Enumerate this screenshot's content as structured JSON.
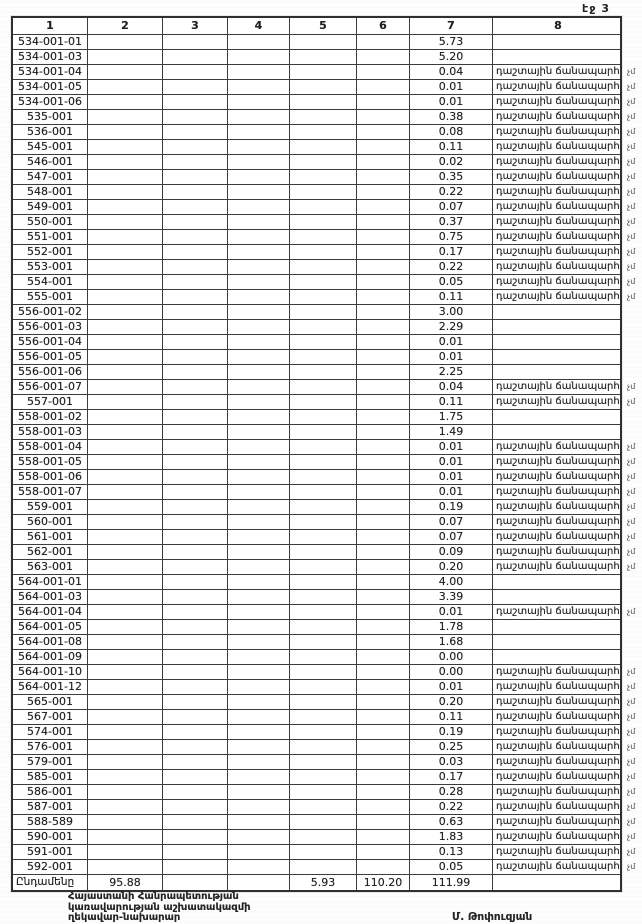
{
  "page": {
    "page_label": "էջ 3"
  },
  "table": {
    "headers": [
      "1",
      "2",
      "3",
      "4",
      "5",
      "6",
      "7",
      "8"
    ],
    "rows": [
      {
        "code": "534-001-01",
        "value": "5.73",
        "note": "",
        "margin": ""
      },
      {
        "code": "534-001-03",
        "value": "5.20",
        "note": "",
        "margin": ""
      },
      {
        "code": "534-001-04",
        "value": "0.04",
        "note": "դաշտային ճանապարհ",
        "margin": "չմ"
      },
      {
        "code": "534-001-05",
        "value": "0.01",
        "note": "դաշտային ճանապարհ",
        "margin": "չմ"
      },
      {
        "code": "534-001-06",
        "value": "0.01",
        "note": "դաշտային ճանապարհ",
        "margin": "չմ"
      },
      {
        "code": "535-001",
        "value": "0.38",
        "note": "դաշտային ճանապարհ",
        "margin": "չմ"
      },
      {
        "code": "536-001",
        "value": "0.08",
        "note": "դաշտային ճանապարհ",
        "margin": "չմ"
      },
      {
        "code": "545-001",
        "value": "0.11",
        "note": "դաշտային ճանապարհ",
        "margin": "չմ"
      },
      {
        "code": "546-001",
        "value": "0.02",
        "note": "դաշտային ճանապարհ",
        "margin": "չմ"
      },
      {
        "code": "547-001",
        "value": "0.35",
        "note": "դաշտային ճանապարհ",
        "margin": "չմ"
      },
      {
        "code": "548-001",
        "value": "0.22",
        "note": "դաշտային ճանապարհ",
        "margin": "չմ"
      },
      {
        "code": "549-001",
        "value": "0.07",
        "note": "դաշտային ճանապարհ",
        "margin": "չմ"
      },
      {
        "code": "550-001",
        "value": "0.37",
        "note": "դաշտային ճանապարհ",
        "margin": "չմ"
      },
      {
        "code": "551-001",
        "value": "0.75",
        "note": "դաշտային ճանապարհ",
        "margin": "չմ"
      },
      {
        "code": "552-001",
        "value": "0.17",
        "note": "դաշտային ճանապարհ",
        "margin": "չմ"
      },
      {
        "code": "553-001",
        "value": "0.22",
        "note": "դաշտային ճանապարհ",
        "margin": "չմ"
      },
      {
        "code": "554-001",
        "value": "0.05",
        "note": "դաշտային ճանապարհ",
        "margin": "չմ"
      },
      {
        "code": "555-001",
        "value": "0.11",
        "note": "դաշտային ճանապարհ",
        "margin": "չմ"
      },
      {
        "code": "556-001-02",
        "value": "3.00",
        "note": "",
        "margin": ""
      },
      {
        "code": "556-001-03",
        "value": "2.29",
        "note": "",
        "margin": ""
      },
      {
        "code": "556-001-04",
        "value": "0.01",
        "note": "",
        "margin": ""
      },
      {
        "code": "556-001-05",
        "value": "0.01",
        "note": "",
        "margin": ""
      },
      {
        "code": "556-001-06",
        "value": "2.25",
        "note": "",
        "margin": ""
      },
      {
        "code": "556-001-07",
        "value": "0.04",
        "note": "դաշտային ճանապարհ",
        "margin": "չմ"
      },
      {
        "code": "557-001",
        "value": "0.11",
        "note": "դաշտային ճանապարհ",
        "margin": "չմ"
      },
      {
        "code": "558-001-02",
        "value": "1.75",
        "note": "",
        "margin": ""
      },
      {
        "code": "558-001-03",
        "value": "1.49",
        "note": "",
        "margin": ""
      },
      {
        "code": "558-001-04",
        "value": "0.01",
        "note": "դաշտային ճանապարհ",
        "margin": "չմ"
      },
      {
        "code": "558-001-05",
        "value": "0.01",
        "note": "դաշտային ճանապարհ",
        "margin": "չմ"
      },
      {
        "code": "558-001-06",
        "value": "0.01",
        "note": "դաշտային ճանապարհ",
        "margin": "չմ"
      },
      {
        "code": "558-001-07",
        "value": "0.01",
        "note": "դաշտային ճանապարհ",
        "margin": "չմ"
      },
      {
        "code": "559-001",
        "value": "0.19",
        "note": "դաշտային ճանապարհ",
        "margin": "չմ"
      },
      {
        "code": "560-001",
        "value": "0.07",
        "note": "դաշտային ճանապարհ",
        "margin": "չմ"
      },
      {
        "code": "561-001",
        "value": "0.07",
        "note": "դաշտային ճանապարհ",
        "margin": "չմ"
      },
      {
        "code": "562-001",
        "value": "0.09",
        "note": "դաշտային ճանապարհ",
        "margin": "չմ"
      },
      {
        "code": "563-001",
        "value": "0.20",
        "note": "դաշտային ճանապարհ",
        "margin": "չմ"
      },
      {
        "code": "564-001-01",
        "value": "4.00",
        "note": "",
        "margin": ""
      },
      {
        "code": "564-001-03",
        "value": "3.39",
        "note": "",
        "margin": ""
      },
      {
        "code": "564-001-04",
        "value": "0.01",
        "note": "դաշտային ճանապարհ",
        "margin": "չմ"
      },
      {
        "code": "564-001-05",
        "value": "1.78",
        "note": "",
        "margin": ""
      },
      {
        "code": "564-001-08",
        "value": "1.68",
        "note": "",
        "margin": ""
      },
      {
        "code": "564-001-09",
        "value": "0.00",
        "note": "",
        "margin": ""
      },
      {
        "code": "564-001-10",
        "value": "0.00",
        "note": "դաշտային ճանապարհ",
        "margin": "չմ"
      },
      {
        "code": "564-001-12",
        "value": "0.01",
        "note": "դաշտային ճանապարհ",
        "margin": "չմ"
      },
      {
        "code": "565-001",
        "value": "0.20",
        "note": "դաշտային ճանապարհ",
        "margin": "չմ"
      },
      {
        "code": "567-001",
        "value": "0.11",
        "note": "դաշտային ճանապարհ",
        "margin": "չմ"
      },
      {
        "code": "574-001",
        "value": "0.19",
        "note": "դաշտային ճանապարհ",
        "margin": "չմ"
      },
      {
        "code": "576-001",
        "value": "0.25",
        "note": "դաշտային ճանապարհ",
        "margin": "չմ"
      },
      {
        "code": "579-001",
        "value": "0.03",
        "note": "դաշտային ճանապարհ",
        "margin": "չմ"
      },
      {
        "code": "585-001",
        "value": "0.17",
        "note": "դաշտային ճանապարհ",
        "margin": "չմ"
      },
      {
        "code": "586-001",
        "value": "0.28",
        "note": "դաշտային ճանապարհ",
        "margin": "չմ"
      },
      {
        "code": "587-001",
        "value": "0.22",
        "note": "դաշտային ճանապարհ",
        "margin": "չմ"
      },
      {
        "code": "588-589",
        "value": "0.63",
        "note": "դաշտային ճանապարհ",
        "margin": "չմ"
      },
      {
        "code": "590-001",
        "value": "1.83",
        "note": "դաշտային ճանապարհ",
        "margin": "չմ"
      },
      {
        "code": "591-001",
        "value": "0.13",
        "note": "դաշտային ճանապարհ",
        "margin": "չմ"
      },
      {
        "code": "592-001",
        "value": "0.05",
        "note": "դաշտային ճանապարհ",
        "margin": "չմ"
      }
    ],
    "total": {
      "label": "Ընդամենը",
      "col2": "95.88",
      "col5": "5.93",
      "col6": "110.20",
      "col7": "111.99"
    }
  },
  "footer": {
    "left_lines": [
      "Հայաստանի Հանրապետության",
      "կառավարության աշխատակազմի",
      "ղեկավար-նախարար"
    ],
    "signature": "Մ. Թոփուզյան"
  }
}
